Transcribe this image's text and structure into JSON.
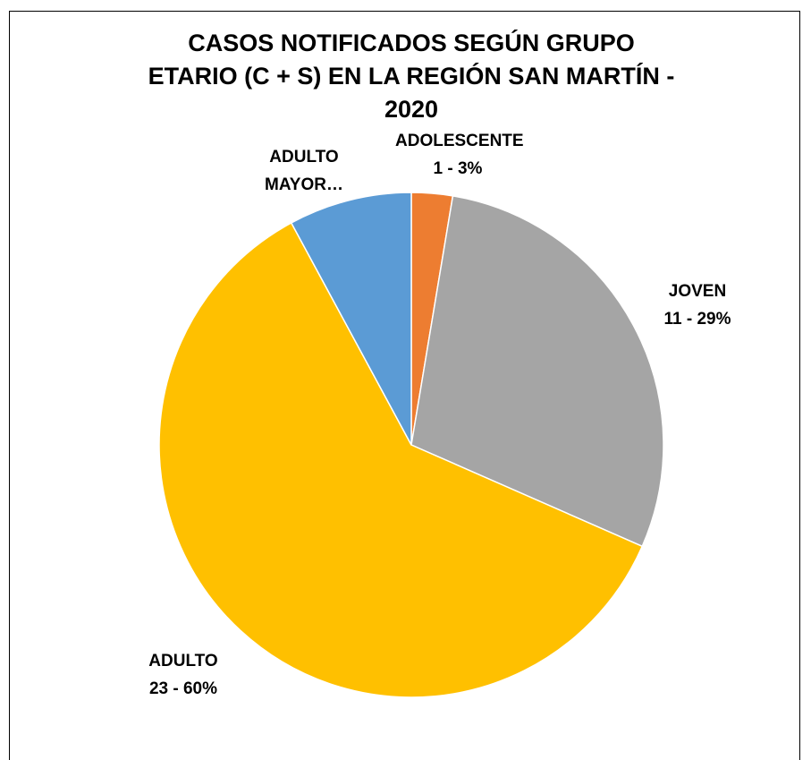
{
  "chart_data": {
    "type": "pie",
    "title": "CASOS NOTIFICADOS SEGÚN GRUPO\nETARIO (C + S) EN LA REGIÓN SAN MARTÍN -\n2020",
    "categories": [
      "ADOLESCENTE",
      "JOVEN",
      "ADULTO",
      "ADULTO MAYOR…"
    ],
    "values": [
      1,
      11,
      23,
      3
    ],
    "value_labels": [
      "1 - 3%",
      "11 - 29%",
      "23 - 60%",
      null
    ],
    "colors": [
      "#ED7D31",
      "#A5A5A5",
      "#FFC000",
      "#5B9BD5"
    ]
  }
}
